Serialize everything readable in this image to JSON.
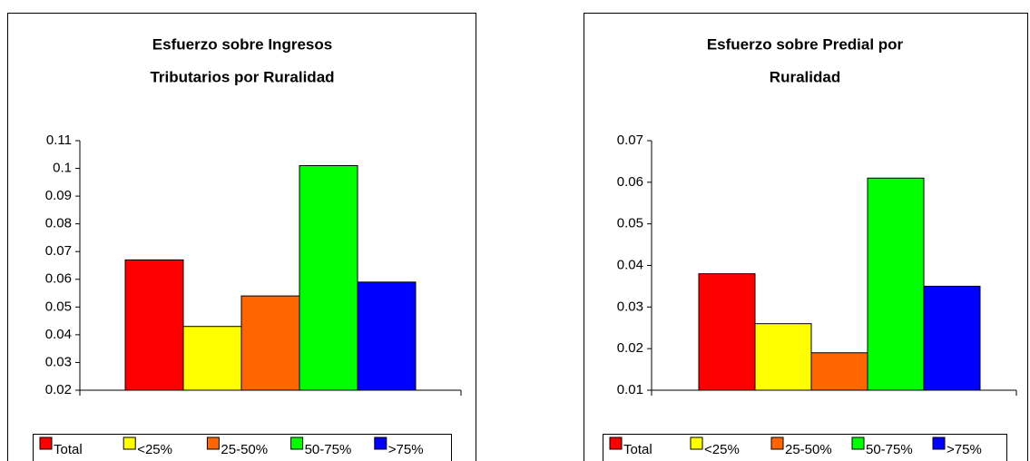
{
  "chart_data": [
    {
      "type": "bar",
      "title": [
        "Esfuerzo sobre Ingresos",
        "Tributarios por Ruralidad"
      ],
      "categories": [
        null
      ],
      "series": [
        {
          "name": "Total",
          "color": "#ff0000",
          "values": [
            0.067
          ]
        },
        {
          "name": "<25%",
          "color": "#ffff00",
          "values": [
            0.043
          ]
        },
        {
          "name": "25-50%",
          "color": "#ff6600",
          "values": [
            0.054
          ]
        },
        {
          "name": "50-75%",
          "color": "#00ff00",
          "values": [
            0.101
          ]
        },
        {
          "name": ">75%",
          "color": "#0000ff",
          "values": [
            0.059
          ]
        }
      ],
      "ylim": [
        0.02,
        0.11
      ],
      "yticks": [
        0.02,
        0.03,
        0.04,
        0.05,
        0.06,
        0.07,
        0.08,
        0.09,
        0.1,
        0.11
      ],
      "grid": false,
      "legend": "bottom"
    },
    {
      "type": "bar",
      "title": [
        "Esfuerzo sobre Predial por",
        "Ruralidad"
      ],
      "categories": [
        null
      ],
      "series": [
        {
          "name": "Total",
          "color": "#ff0000",
          "values": [
            0.038
          ]
        },
        {
          "name": "<25%",
          "color": "#ffff00",
          "values": [
            0.026
          ]
        },
        {
          "name": "25-50%",
          "color": "#ff6600",
          "values": [
            0.019
          ]
        },
        {
          "name": "50-75%",
          "color": "#00ff00",
          "values": [
            0.061
          ]
        },
        {
          "name": ">75%",
          "color": "#0000ff",
          "values": [
            0.035
          ]
        }
      ],
      "ylim": [
        0.01,
        0.07
      ],
      "yticks": [
        0.01,
        0.02,
        0.03,
        0.04,
        0.05,
        0.06,
        0.07
      ],
      "grid": false,
      "legend": "bottom"
    }
  ]
}
